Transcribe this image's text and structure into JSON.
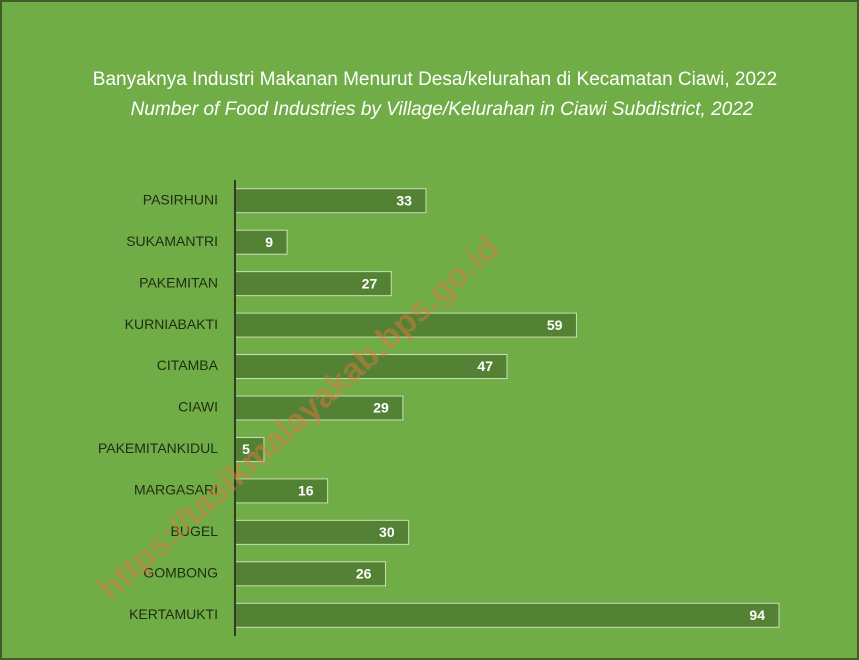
{
  "chart_data": {
    "type": "bar",
    "orientation": "horizontal",
    "title": "Banyaknya Industri Makanan Menurut Desa/kelurahan di Kecamatan Ciawi, 2022",
    "subtitle": "Number of Food Industries by Village/Kelurahan in Ciawi Subdistrict, 2022",
    "watermark": "https://tasikmalayakab.bps.go.id",
    "categories": [
      "PASIRHUNI",
      "SUKAMANTRI",
      "PAKEMITAN",
      "KURNIABAKTI",
      "CITAMBA",
      "CIAWI",
      "PAKEMITANKIDUL",
      "MARGASARI",
      "BUGEL",
      "GOMBONG",
      "KERTAMUKTI"
    ],
    "values": [
      33,
      9,
      27,
      59,
      47,
      29,
      5,
      16,
      30,
      26,
      94
    ],
    "color": "#548235"
  }
}
